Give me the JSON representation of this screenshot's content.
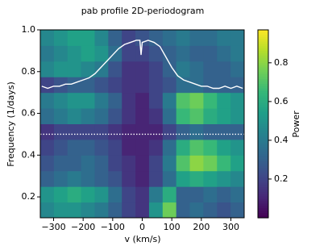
{
  "chart_data": {
    "type": "heatmap",
    "title": "pab profile 2D-periodogram",
    "x_label": "v (km/s)",
    "y_label": "Frequency (1/days)",
    "colormap": "viridis",
    "x": [
      -322,
      -276,
      -230,
      -184,
      -138,
      -92,
      -46,
      0,
      46,
      92,
      138,
      184,
      230,
      276,
      322
    ],
    "y": [
      0.1375,
      0.2125,
      0.2875,
      0.3625,
      0.4375,
      0.5125,
      0.5875,
      0.6625,
      0.7375,
      0.8125,
      0.8875,
      0.9625
    ],
    "z": [
      [
        0.45,
        0.5,
        0.5,
        0.45,
        0.4,
        0.3,
        0.2,
        0.15,
        0.5,
        0.75,
        0.3,
        0.35,
        0.3,
        0.25,
        0.3
      ],
      [
        0.5,
        0.55,
        0.6,
        0.55,
        0.5,
        0.35,
        0.2,
        0.15,
        0.4,
        0.6,
        0.3,
        0.3,
        0.35,
        0.3,
        0.35
      ],
      [
        0.3,
        0.35,
        0.4,
        0.35,
        0.3,
        0.25,
        0.15,
        0.1,
        0.2,
        0.35,
        0.55,
        0.6,
        0.55,
        0.5,
        0.45
      ],
      [
        0.25,
        0.3,
        0.3,
        0.35,
        0.3,
        0.2,
        0.15,
        0.1,
        0.2,
        0.4,
        0.7,
        0.8,
        0.75,
        0.65,
        0.55
      ],
      [
        0.2,
        0.25,
        0.3,
        0.3,
        0.25,
        0.2,
        0.1,
        0.1,
        0.15,
        0.35,
        0.6,
        0.7,
        0.65,
        0.55,
        0.5
      ],
      [
        0.15,
        0.2,
        0.2,
        0.2,
        0.2,
        0.15,
        0.1,
        0.1,
        0.1,
        0.2,
        0.3,
        0.35,
        0.3,
        0.3,
        0.3
      ],
      [
        0.35,
        0.4,
        0.45,
        0.4,
        0.35,
        0.25,
        0.15,
        0.1,
        0.15,
        0.35,
        0.65,
        0.7,
        0.6,
        0.55,
        0.5
      ],
      [
        0.4,
        0.45,
        0.5,
        0.5,
        0.4,
        0.3,
        0.15,
        0.1,
        0.2,
        0.4,
        0.7,
        0.75,
        0.65,
        0.55,
        0.5
      ],
      [
        0.2,
        0.25,
        0.3,
        0.3,
        0.25,
        0.2,
        0.15,
        0.15,
        0.2,
        0.25,
        0.35,
        0.35,
        0.3,
        0.3,
        0.3
      ],
      [
        0.45,
        0.5,
        0.5,
        0.45,
        0.4,
        0.25,
        0.15,
        0.15,
        0.2,
        0.3,
        0.4,
        0.35,
        0.3,
        0.3,
        0.35
      ],
      [
        0.4,
        0.45,
        0.5,
        0.55,
        0.5,
        0.35,
        0.2,
        0.2,
        0.25,
        0.3,
        0.35,
        0.3,
        0.3,
        0.35,
        0.4
      ],
      [
        0.45,
        0.5,
        0.55,
        0.55,
        0.45,
        0.3,
        0.2,
        0.25,
        0.3,
        0.35,
        0.4,
        0.35,
        0.35,
        0.4,
        0.4
      ]
    ],
    "xlim": [
      -345,
      345
    ],
    "xticks": [
      {
        "value": -300,
        "label": "−300"
      },
      {
        "value": -200,
        "label": "−200"
      },
      {
        "value": -100,
        "label": "−100"
      },
      0,
      100,
      200,
      300
    ],
    "ylim": [
      0.1,
      1.0
    ],
    "yticks": [
      0.2,
      0.4,
      0.6,
      0.8,
      {
        "value": 1,
        "label": "1.0"
      }
    ],
    "series": [
      {
        "color": "#ffffff",
        "x": [
          -340,
          -320,
          -300,
          -280,
          -260,
          -240,
          -220,
          -200,
          -180,
          -160,
          -140,
          -120,
          -100,
          -80,
          -60,
          -40,
          -20,
          -8,
          -4,
          0,
          20,
          40,
          60,
          80,
          100,
          120,
          140,
          160,
          180,
          200,
          220,
          240,
          260,
          280,
          300,
          320,
          340
        ],
        "values": [
          0.73,
          0.72,
          0.73,
          0.73,
          0.74,
          0.74,
          0.75,
          0.76,
          0.77,
          0.79,
          0.82,
          0.85,
          0.88,
          0.91,
          0.93,
          0.94,
          0.95,
          0.95,
          0.88,
          0.94,
          0.95,
          0.94,
          0.92,
          0.87,
          0.82,
          0.78,
          0.76,
          0.75,
          0.74,
          0.73,
          0.73,
          0.72,
          0.72,
          0.73,
          0.72,
          0.73,
          0.72
        ]
      }
    ],
    "hline": {
      "value": 0.5,
      "color": "#ffffff",
      "style": "dotted"
    },
    "colorbar": {
      "label": "Power",
      "lim": [
        0.0,
        0.97
      ],
      "ticks": [
        0.2,
        0.4,
        0.6,
        0.8
      ]
    }
  }
}
